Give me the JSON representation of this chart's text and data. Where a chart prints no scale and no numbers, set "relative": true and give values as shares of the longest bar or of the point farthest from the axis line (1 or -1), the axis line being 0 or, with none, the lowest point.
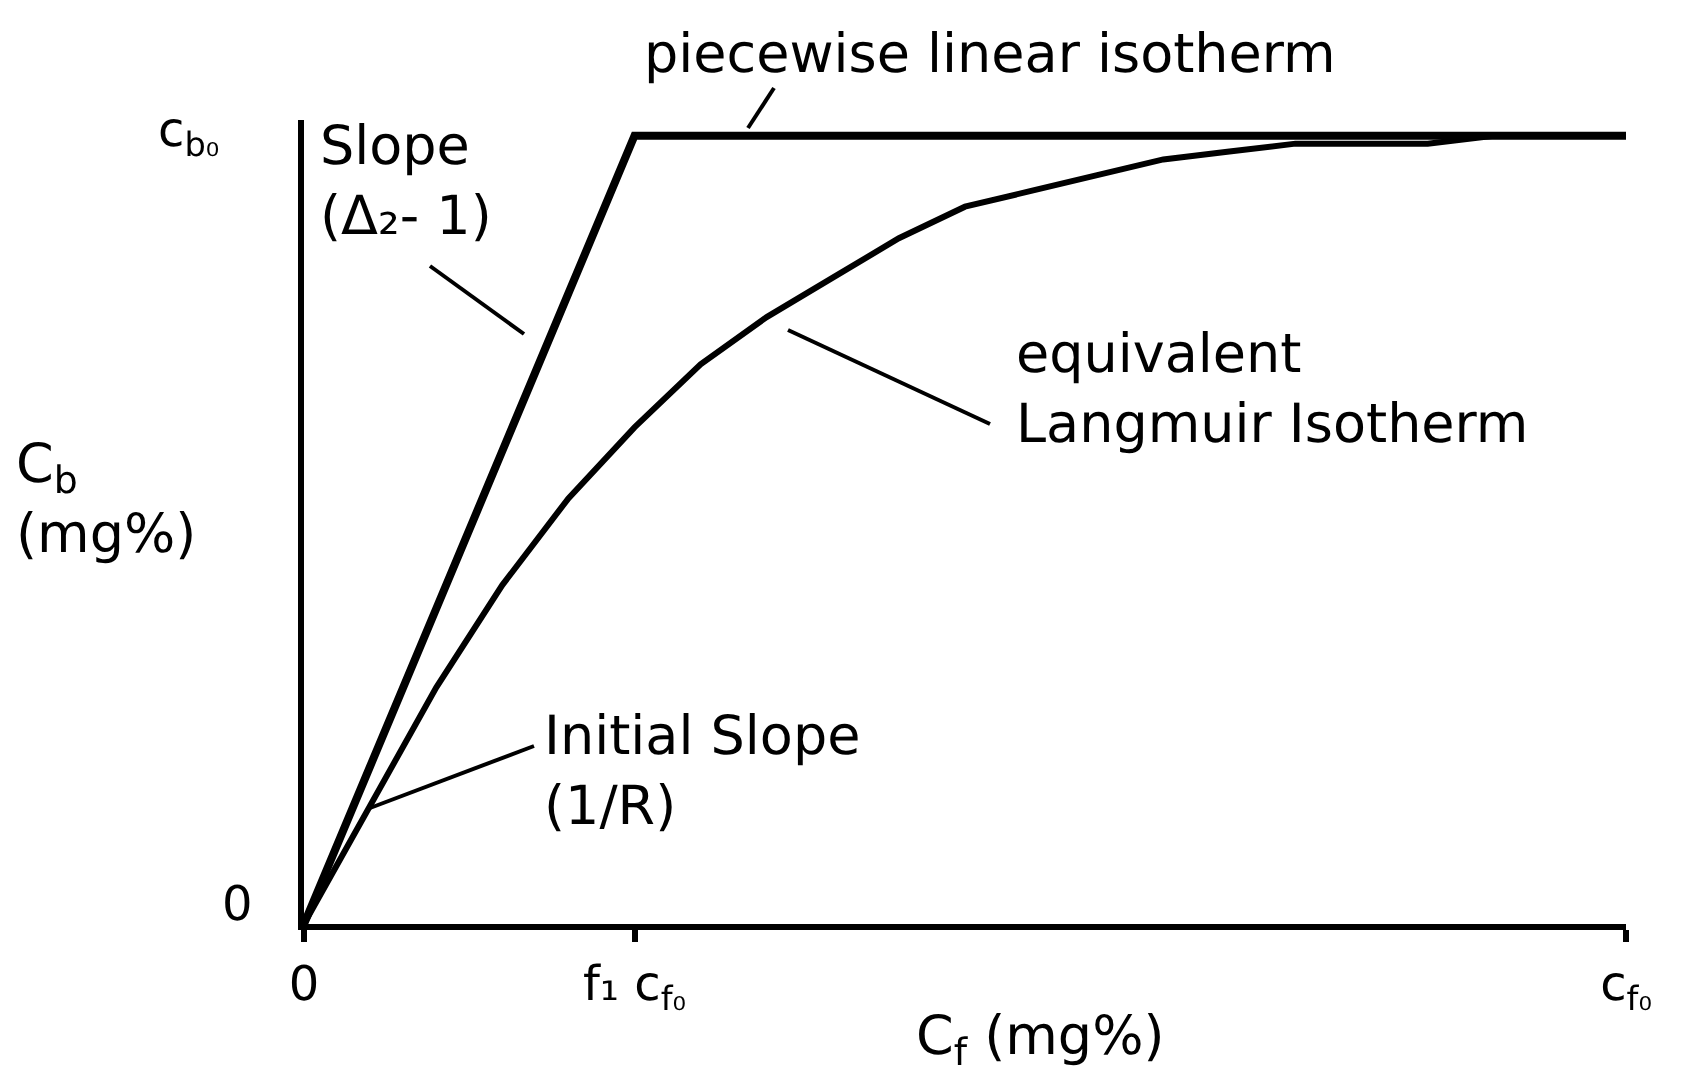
{
  "chart_data": {
    "type": "line",
    "relative": true,
    "xlabel": "C$_{f}$ (mg%)",
    "ylabel": "C$_{b}$\n(mg%)",
    "categories": [
      "0",
      null,
      null,
      null,
      null,
      "f₁ c$_{f₀}$",
      null,
      null,
      null,
      null,
      null,
      null,
      null,
      null,
      null,
      null,
      null,
      null,
      null,
      null,
      "c$_{f₀}$"
    ],
    "series": [
      {
        "color": "#000000",
        "values": [
          0,
          0.2,
          0.4,
          0.6,
          0.8,
          1,
          1,
          1,
          1,
          1,
          1,
          1,
          1,
          1,
          1,
          1,
          1,
          1,
          1,
          1,
          1
        ]
      },
      {
        "color": "#000000",
        "values": [
          0,
          0.15,
          0.3,
          0.43,
          0.54,
          0.63,
          0.71,
          0.77,
          0.82,
          0.87,
          0.91,
          0.93,
          0.95,
          0.97,
          0.98,
          0.99,
          0.99,
          0.99,
          1,
          1,
          1
        ]
      }
    ],
    "annotations": [
      "c$_{b₀}$",
      "piecewise linear isotherm",
      "Slope\n(Δ₂- 1)",
      "equivalent\nLangmuir Isotherm",
      "Initial Slope\n(1/R)",
      "0"
    ]
  }
}
